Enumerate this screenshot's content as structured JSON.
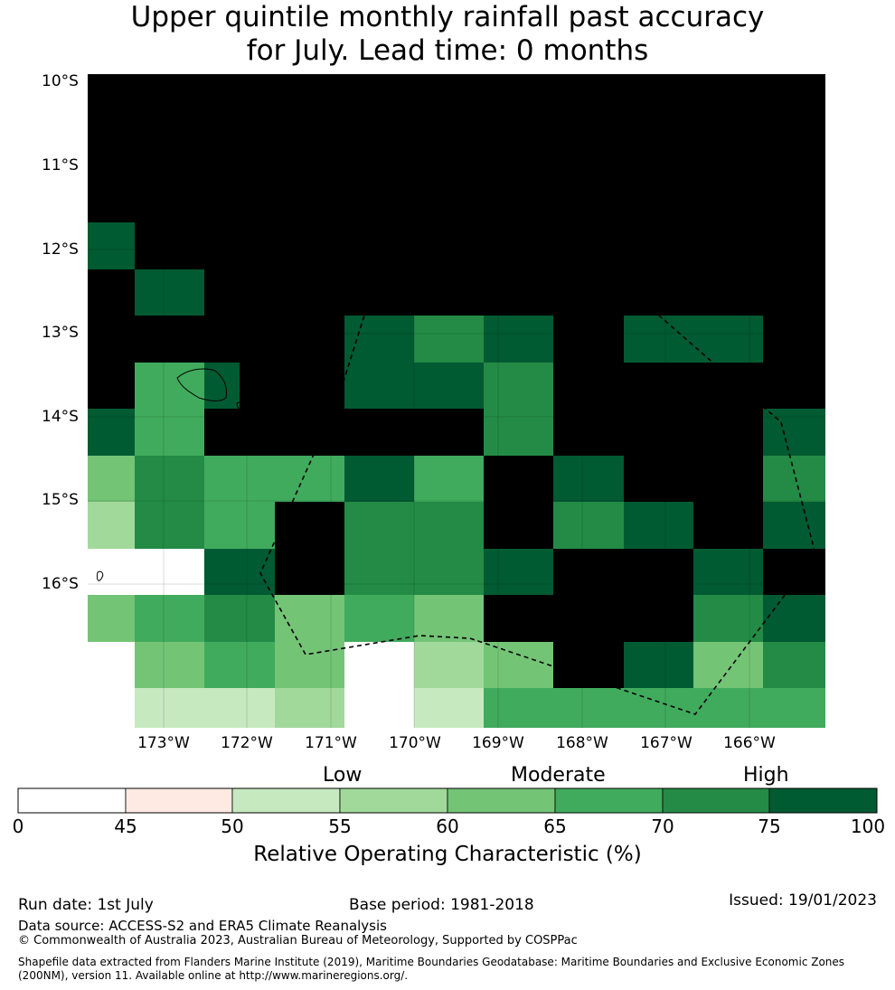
{
  "title_line1": "Upper quintile monthly rainfall past accuracy",
  "title_line2": "for July. Lead time: 0 months",
  "map": {
    "lat_labels": [
      "10°S",
      "11°S",
      "12°S",
      "13°S",
      "14°S",
      "15°S",
      "16°S"
    ],
    "lon_labels": [
      "173°W",
      "172°W",
      "171°W",
      "170°W",
      "169°W",
      "168°W",
      "167°W",
      "166°W"
    ],
    "grid_rows": [
      [
        8,
        8,
        8,
        8,
        8,
        8,
        8,
        8,
        8,
        8,
        8,
        8,
        8,
        8,
        8,
        8
      ],
      [
        8,
        8,
        8,
        8,
        8,
        8,
        8,
        8,
        8,
        8,
        8,
        8,
        8,
        8,
        8,
        8
      ],
      [
        8,
        8,
        8,
        8,
        8,
        8,
        8,
        8,
        8,
        8,
        8,
        8,
        8,
        8,
        8,
        8
      ],
      [
        7,
        8,
        8,
        8,
        8,
        8,
        8,
        8,
        8,
        8,
        8,
        8,
        8,
        8,
        8,
        8
      ],
      [
        8,
        7,
        7,
        8,
        8,
        8,
        8,
        8,
        8,
        8,
        8,
        8,
        8,
        8,
        8,
        8
      ],
      [
        8,
        8,
        8,
        8,
        8,
        8,
        8,
        7,
        7,
        6,
        6,
        7,
        7,
        8,
        8,
        7,
        7,
        8
      ],
      [
        8,
        5,
        5,
        7,
        8,
        8,
        8,
        7,
        7,
        7,
        7,
        6,
        6,
        8,
        8,
        8,
        8
      ],
      [
        7,
        5,
        5,
        8,
        8,
        8,
        8,
        8,
        8,
        8,
        8,
        6,
        6,
        8,
        8,
        8,
        8,
        7
      ],
      [
        4,
        6,
        6,
        5,
        5,
        5,
        5,
        7,
        7,
        5,
        5,
        8,
        8,
        7,
        7,
        8,
        8,
        8,
        6
      ],
      [
        3,
        6,
        6,
        5,
        5,
        8,
        8,
        6,
        6,
        6,
        6,
        8,
        8,
        6,
        6,
        7,
        7,
        8,
        8,
        7
      ],
      [
        0,
        0,
        0,
        7,
        7,
        8,
        8,
        6,
        6,
        6,
        6,
        7,
        7,
        8,
        8,
        8,
        8,
        7,
        7,
        8
      ],
      [
        4,
        5,
        5,
        6,
        6,
        4,
        4,
        5,
        5,
        4,
        4,
        8,
        8,
        8,
        8,
        8,
        8,
        6,
        6,
        7
      ],
      [
        0,
        4,
        4,
        5,
        5,
        4,
        4,
        0,
        0,
        3,
        3,
        4,
        4,
        8,
        8,
        7,
        7,
        4,
        4,
        6
      ],
      [
        0,
        2,
        2,
        2,
        2,
        3,
        3,
        0,
        0,
        2,
        2,
        5,
        5,
        5,
        5,
        5,
        5,
        5,
        5,
        5
      ]
    ],
    "colors": {
      "bin_0_45": "#ffffff",
      "bin_45_50": "#feeae2",
      "bin_50_55": "#c7e9c0",
      "bin_55_60": "#a1d99b",
      "bin_60_65": "#74c476",
      "bin_65_70": "#41ab5d",
      "bin_70_75": "#238b45",
      "bin_75_100": "#005a32"
    }
  },
  "colorbar": {
    "levels": [
      "Low",
      "Moderate",
      "High"
    ],
    "ticks": [
      "0",
      "45",
      "50",
      "55",
      "60",
      "65",
      "70",
      "75",
      "100"
    ],
    "label": "Relative Operating Characteristic (%)",
    "bin_colors": [
      "#ffffff",
      "#feeae2",
      "#c7e9c0",
      "#a1d99b",
      "#74c476",
      "#41ab5d",
      "#238b45",
      "#005a32"
    ]
  },
  "footer": {
    "run_date": "Run date: 1st July",
    "base_period": "Base period: 1981-2018",
    "issued": "Issued: 19/01/2023",
    "data_source": "Data source: ACCESS-S2 and ERA5 Climate Reanalysis",
    "copyright": "© Commonwealth of Australia 2023, Australian Bureau of Meteorology, Supported by COSPPac",
    "shapefile": "Shapefile data extracted from Flanders Marine Institute (2019), Maritime Boundaries Geodatabase: Maritime Boundaries and Exclusive Economic Zones (200NM), version 11. Available online at http://www.marineregions.org/."
  }
}
